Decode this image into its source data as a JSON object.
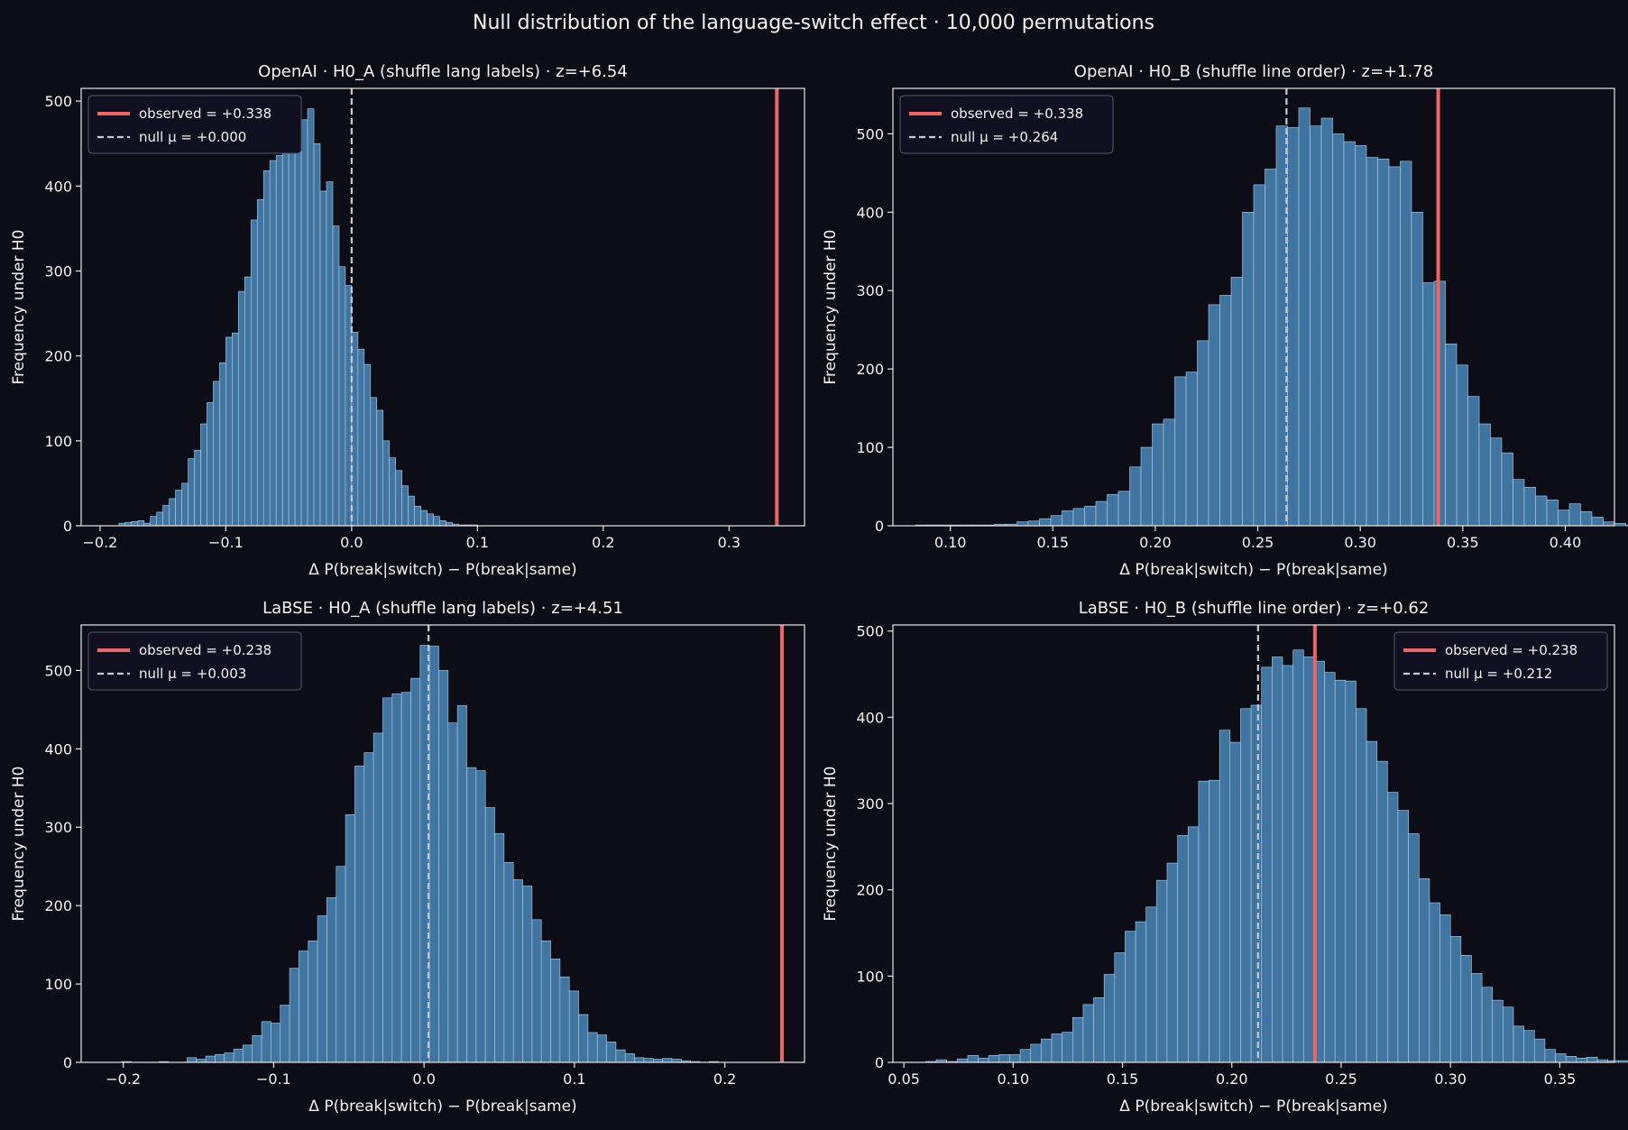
{
  "figure": {
    "suptitle": "Null distribution of the language-switch effect  ·  10,000 permutations"
  },
  "colors": {
    "background": "#0d0d17",
    "bar_fill": "#3f75a0",
    "bar_edge": "#b9cfe2",
    "observed_line": "#ee6565",
    "null_mean_line": "#c6ccd6",
    "axes_spine": "#e6e6e6",
    "text": "#f2f2f2"
  },
  "chart_data": [
    {
      "type": "bar",
      "title": "OpenAI · H0_A (shuffle lang labels)  ·  z=+6.54",
      "xlabel": "Δ P(break|switch) − P(break|same)",
      "ylabel": "Frequency under H0",
      "xlim": [
        -0.215,
        0.36
      ],
      "ylim": [
        0,
        515
      ],
      "xticks": [
        -0.2,
        -0.1,
        0.0,
        0.1,
        0.2,
        0.3
      ],
      "xtick_labels": [
        "−0.2",
        "−0.1",
        "0.0",
        "0.1",
        "0.2",
        "0.3"
      ],
      "yticks": [
        0,
        100,
        200,
        300,
        400,
        500
      ],
      "bin_start": -0.185,
      "bin_width": 0.005,
      "values": [
        3,
        4,
        5,
        6,
        3,
        11,
        16,
        24,
        32,
        42,
        50,
        79,
        89,
        120,
        145,
        170,
        192,
        222,
        227,
        276,
        293,
        360,
        384,
        418,
        430,
        436,
        478,
        466,
        488,
        478,
        491,
        450,
        394,
        405,
        353,
        305,
        283,
        228,
        208,
        190,
        151,
        136,
        100,
        80,
        65,
        47,
        35,
        23,
        18,
        14,
        11,
        6,
        4,
        2,
        1,
        1,
        1
      ],
      "observed": 0.338,
      "null_mean": 0.0,
      "legend_position": "upper left",
      "legend": [
        "observed = +0.338",
        "null μ = +0.000"
      ]
    },
    {
      "type": "bar",
      "title": "OpenAI · H0_B (shuffle line order)  ·  z=+1.78",
      "xlabel": "Δ P(break|switch) − P(break|same)",
      "ylabel": "Frequency under H0",
      "xlim": [
        0.072,
        0.424
      ],
      "ylim": [
        0,
        558
      ],
      "xticks": [
        0.1,
        0.15,
        0.2,
        0.25,
        0.3,
        0.35,
        0.4
      ],
      "xtick_labels": [
        "0.10",
        "0.15",
        "0.20",
        "0.25",
        "0.30",
        "0.35",
        "0.40"
      ],
      "yticks": [
        0,
        100,
        200,
        300,
        400,
        500
      ],
      "bin_start": 0.083,
      "bin_width": 0.0055,
      "values": [
        1,
        1,
        1,
        1,
        1,
        1,
        1,
        2,
        2,
        5,
        6,
        9,
        13,
        19,
        22,
        25,
        31,
        40,
        44,
        75,
        100,
        130,
        136,
        190,
        196,
        236,
        282,
        294,
        317,
        400,
        435,
        455,
        510,
        508,
        533,
        510,
        520,
        500,
        490,
        485,
        470,
        468,
        458,
        465,
        400,
        310,
        312,
        232,
        205,
        165,
        130,
        112,
        93,
        59,
        49,
        38,
        33,
        20,
        28,
        18,
        11,
        5,
        3,
        1
      ],
      "observed": 0.338,
      "null_mean": 0.264,
      "legend_position": "upper left",
      "legend": [
        "observed = +0.338",
        "null μ = +0.264"
      ]
    },
    {
      "type": "bar",
      "title": "LaBSE · H0_A (shuffle lang labels)  ·  z=+4.51",
      "xlabel": "Δ P(break|switch) − P(break|same)",
      "ylabel": "Frequency under H0",
      "xlim": [
        -0.228,
        0.253
      ],
      "ylim": [
        0,
        558
      ],
      "xticks": [
        -0.2,
        -0.1,
        0.0,
        0.1,
        0.2
      ],
      "xtick_labels": [
        "−0.2",
        "−0.1",
        "0.0",
        "0.1",
        "0.2"
      ],
      "yticks": [
        0,
        100,
        200,
        300,
        400,
        500
      ],
      "bin_start": -0.201,
      "bin_width": 0.0062,
      "values": [
        1,
        0,
        0,
        0,
        1,
        0,
        0,
        6,
        4,
        8,
        10,
        12,
        17,
        22,
        34,
        52,
        50,
        73,
        120,
        142,
        155,
        187,
        210,
        250,
        316,
        378,
        395,
        420,
        465,
        470,
        472,
        490,
        532,
        531,
        500,
        433,
        455,
        376,
        372,
        325,
        292,
        255,
        233,
        225,
        182,
        155,
        132,
        109,
        91,
        61,
        38,
        35,
        26,
        16,
        11,
        6,
        5,
        4,
        5,
        4,
        2,
        1,
        0,
        1
      ],
      "observed": 0.238,
      "null_mean": 0.003,
      "legend_position": "upper left",
      "legend": [
        "observed = +0.238",
        "null μ = +0.003"
      ]
    },
    {
      "type": "bar",
      "title": "LaBSE · H0_B (shuffle line order)  ·  z=+0.62",
      "xlabel": "Δ P(break|switch) − P(break|same)",
      "ylabel": "Frequency under H0",
      "xlim": [
        0.045,
        0.375
      ],
      "ylim": [
        0,
        507
      ],
      "xticks": [
        0.05,
        0.1,
        0.15,
        0.2,
        0.25,
        0.3,
        0.35
      ],
      "xtick_labels": [
        "0.05",
        "0.10",
        "0.15",
        "0.20",
        "0.25",
        "0.30",
        "0.35"
      ],
      "yticks": [
        0,
        100,
        200,
        300,
        400,
        500
      ],
      "bin_start": 0.06,
      "bin_width": 0.0048,
      "values": [
        1,
        3,
        1,
        4,
        8,
        5,
        8,
        9,
        9,
        15,
        21,
        27,
        33,
        35,
        52,
        67,
        75,
        102,
        127,
        152,
        163,
        180,
        211,
        231,
        263,
        273,
        326,
        327,
        385,
        371,
        410,
        414,
        458,
        470,
        460,
        478,
        470,
        465,
        452,
        443,
        442,
        410,
        372,
        349,
        313,
        292,
        265,
        213,
        185,
        171,
        146,
        124,
        103,
        87,
        72,
        64,
        42,
        37,
        27,
        15,
        10,
        7,
        5,
        6,
        3,
        2,
        2
      ],
      "observed": 0.238,
      "null_mean": 0.212,
      "legend_position": "upper right",
      "legend": [
        "observed = +0.238",
        "null μ = +0.212"
      ]
    }
  ]
}
